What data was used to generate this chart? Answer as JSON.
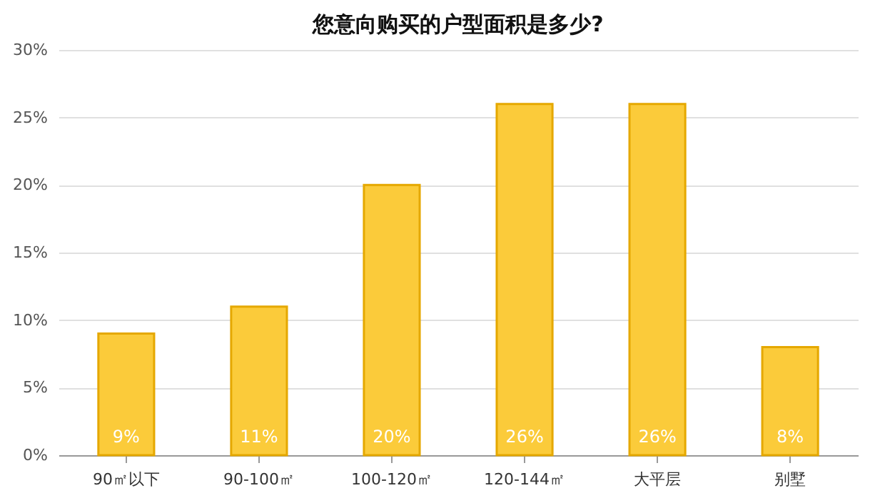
{
  "chart_data": {
    "type": "bar",
    "title": "您意向购买的户型面积是多少?",
    "categories": [
      "90㎡以下",
      "90-100㎡",
      "100-120㎡",
      "120-144㎡",
      "大平层",
      "别墅"
    ],
    "values": [
      9,
      11,
      20,
      26,
      26,
      8
    ],
    "value_labels": [
      "9%",
      "11%",
      "20%",
      "26%",
      "26%",
      "8%"
    ],
    "color": "#fbcb3a",
    "ylim": [
      0,
      30
    ],
    "yticks": [
      {
        "value": 0,
        "label": "0%"
      },
      {
        "value": 5,
        "label": "5%"
      },
      {
        "value": 10,
        "label": "10%"
      },
      {
        "value": 15,
        "label": "15%"
      },
      {
        "value": 20,
        "label": "20%"
      },
      {
        "value": 25,
        "label": "25%"
      },
      {
        "value": 30,
        "label": "30%"
      }
    ],
    "grid": "y"
  }
}
